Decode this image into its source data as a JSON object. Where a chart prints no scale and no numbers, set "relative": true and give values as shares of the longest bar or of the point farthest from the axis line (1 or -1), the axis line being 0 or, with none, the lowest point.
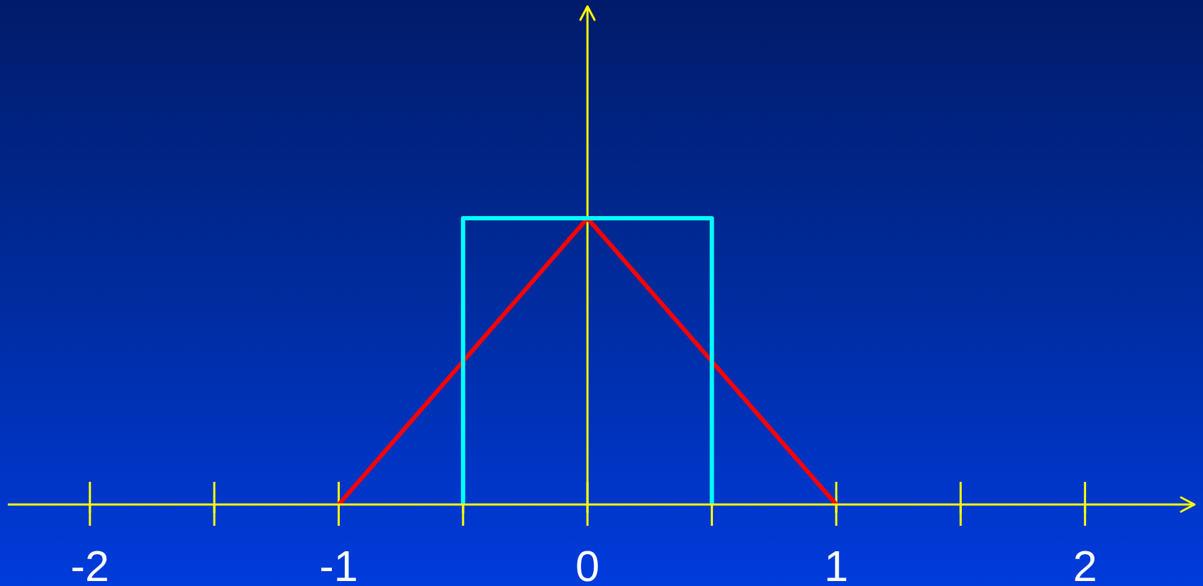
{
  "chart_data": {
    "type": "line",
    "relative": true,
    "xlim": [
      -2.33,
      2.44
    ],
    "xticks": [
      -2,
      {
        "value": -1.5,
        "label": null
      },
      -1,
      {
        "value": -0.5,
        "label": null
      },
      0,
      {
        "value": 0.5,
        "label": null
      },
      1,
      {
        "value": 1.5,
        "label": null
      },
      2
    ],
    "series": [
      {
        "color": "#ff0000",
        "x": [
          -1,
          0,
          1
        ],
        "values": [
          0,
          1,
          0
        ]
      },
      {
        "color": "#00ffff",
        "x": [
          -0.5,
          -0.5,
          0.5,
          0.5
        ],
        "values": [
          0,
          1,
          1,
          0
        ]
      }
    ],
    "ref_lines": [
      {
        "axis": "x",
        "value": 0,
        "color": "#ffff00"
      }
    ],
    "marker": "none",
    "line_style": "solid"
  }
}
